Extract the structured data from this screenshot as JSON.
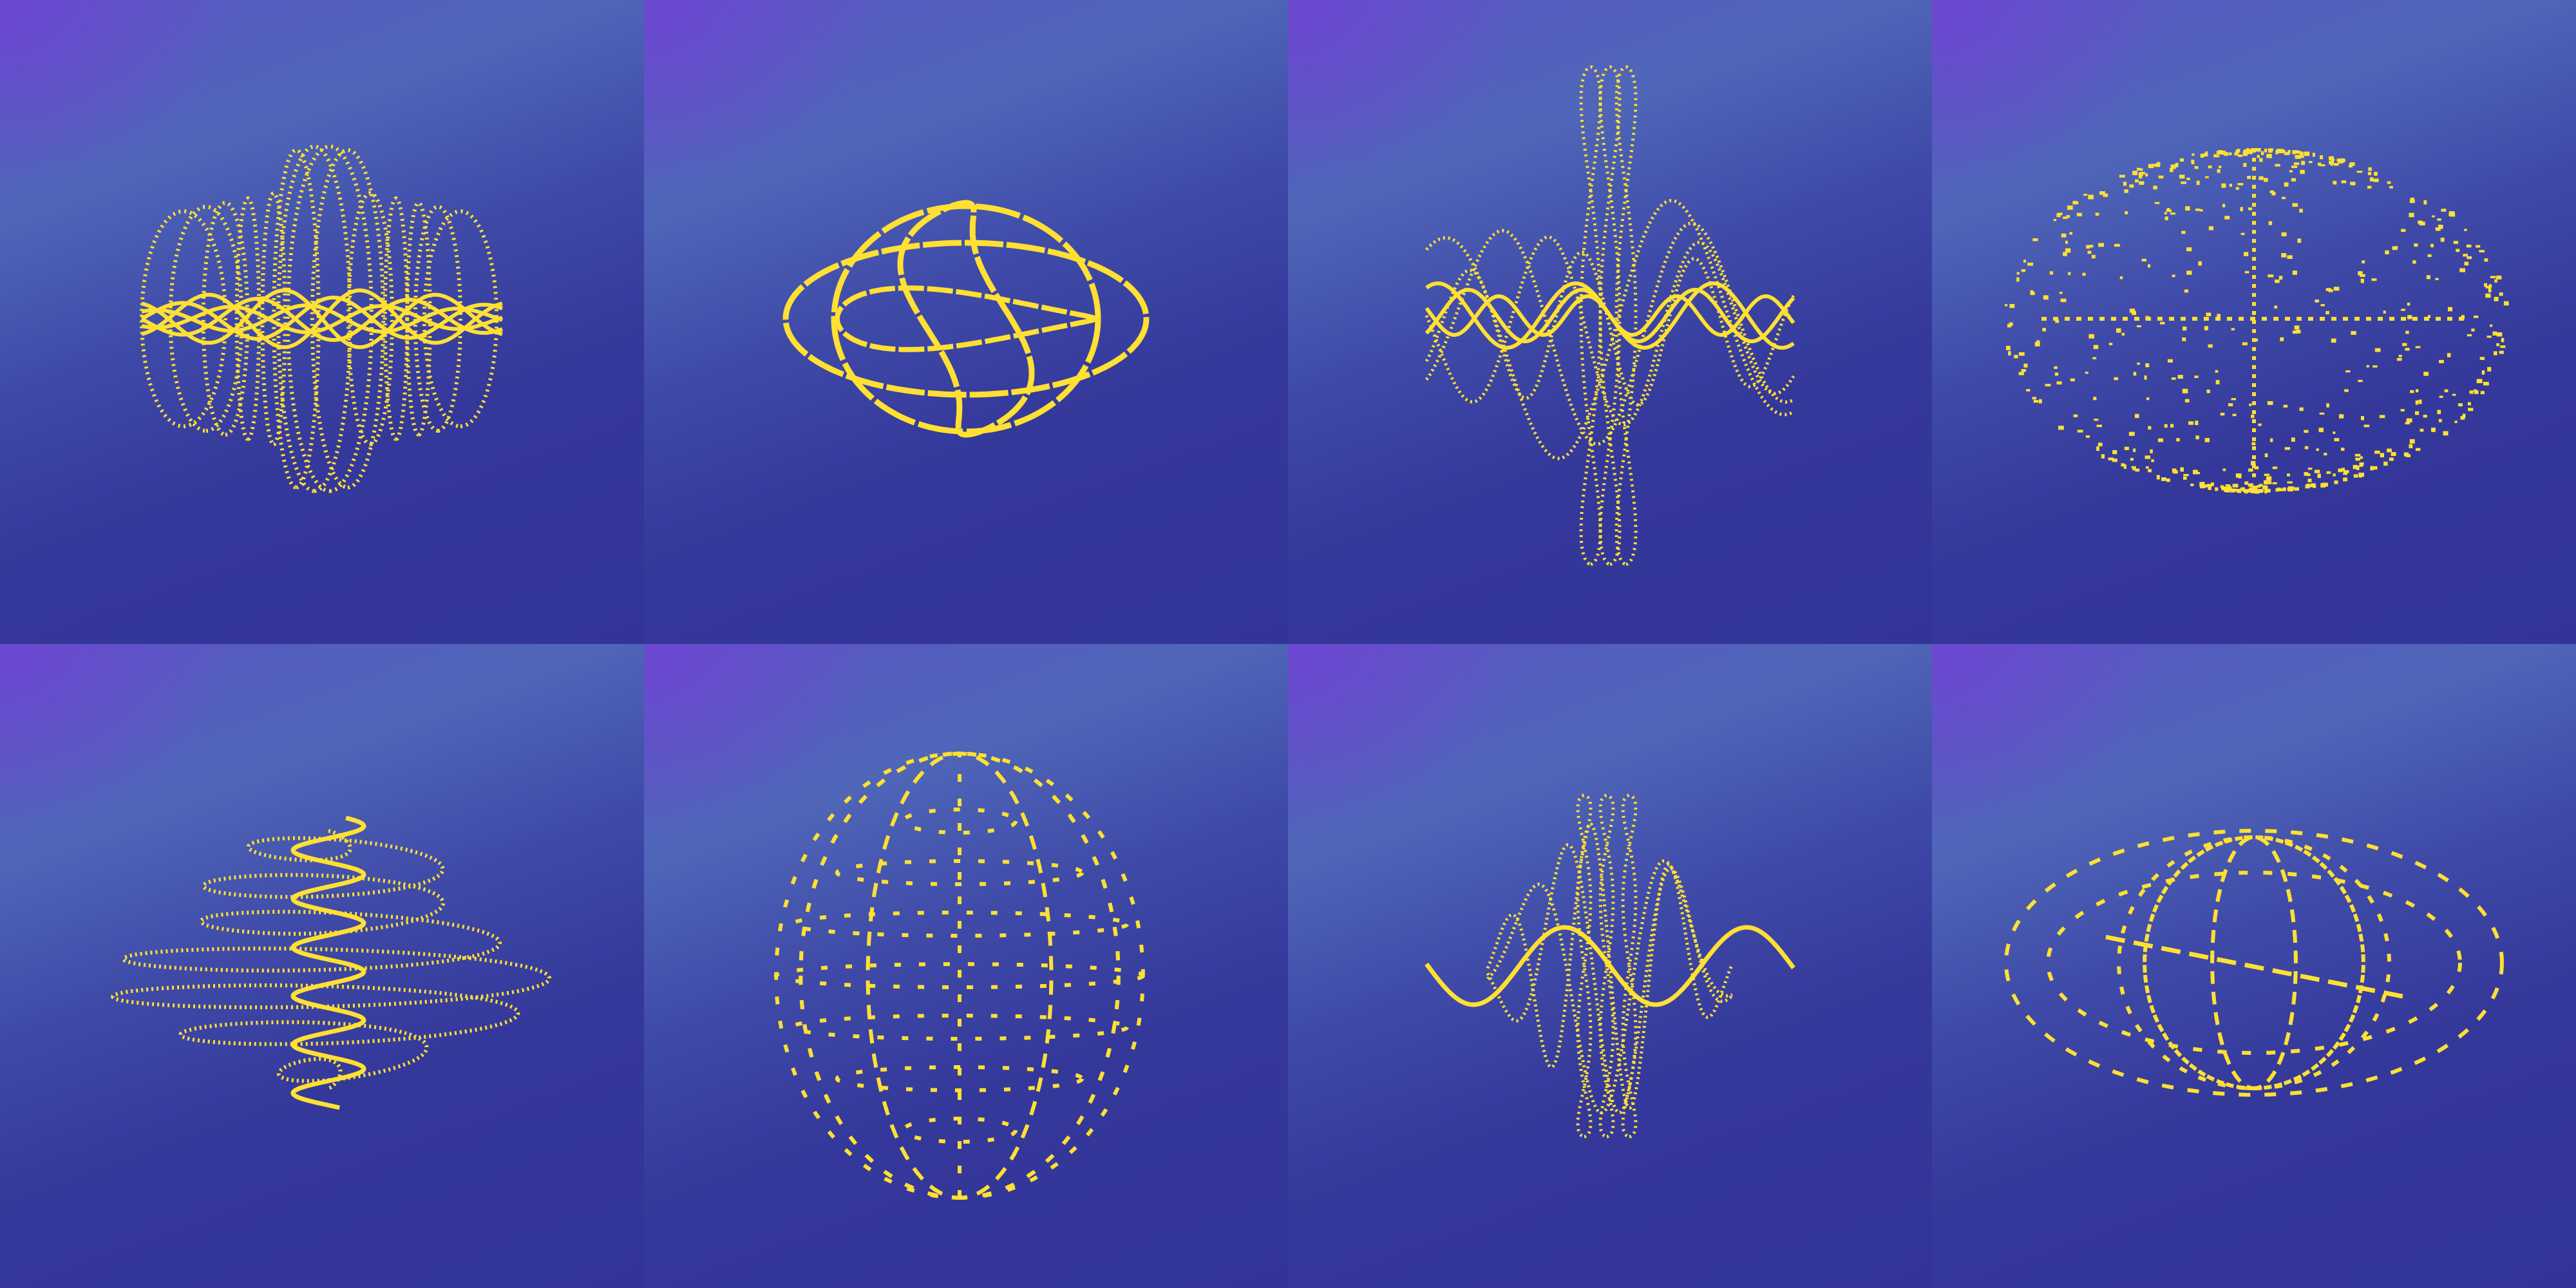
{
  "panels": [
    {
      "id": "1",
      "figure": "vertical-oscillation-bundle"
    },
    {
      "id": "2",
      "figure": "knotted-loops"
    },
    {
      "id": "3",
      "figure": "multi-frequency-waves"
    },
    {
      "id": "4",
      "figure": "scattered-spheroid"
    },
    {
      "id": "5",
      "figure": "spiral-coil"
    },
    {
      "id": "6",
      "figure": "dashed-sphere"
    },
    {
      "id": "7",
      "figure": "damped-wave-packet"
    },
    {
      "id": "8",
      "figure": "dashed-ellipsoid"
    }
  ],
  "colors": {
    "stroke": "#ffe033",
    "background_top": "#6a4ed0",
    "background_bottom": "#323597"
  }
}
